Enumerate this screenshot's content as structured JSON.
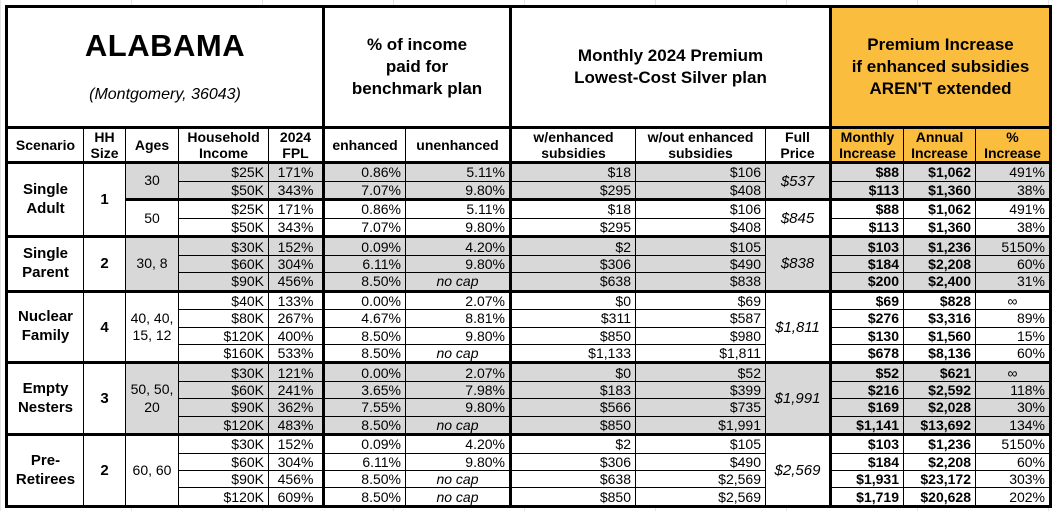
{
  "colors": {
    "accent_orange": "#FBBD3E",
    "band_gray": "#D8D8D8",
    "border": "#000000"
  },
  "title": {
    "state": "ALABAMA",
    "location": "(Montgomery, 36043)"
  },
  "group_headers": {
    "income_share": "% of income\npaid for\nbenchmark plan",
    "premium": "Monthly 2024 Premium\nLowest-Cost Silver plan",
    "increase": "Premium Increase\nif enhanced subsidies\nAREN'T extended"
  },
  "column_headers": {
    "scenario": "Scenario",
    "hh_size": "HH\nSize",
    "ages": "Ages",
    "household_income": "Household\nIncome",
    "fpl": "2024\nFPL",
    "enhanced": "enhanced",
    "unenhanced": "unenhanced",
    "w_enhanced": "w/enhanced\nsubsidies",
    "wo_enhanced": "w/out enhanced\nsubsidies",
    "full_price": "Full\nPrice",
    "monthly_increase": "Monthly\nIncrease",
    "annual_increase": "Annual\nIncrease",
    "pct_increase": "%\nIncrease"
  },
  "blocks": [
    {
      "scenario": "Single\nAdult",
      "hh_size": "1",
      "subblocks": [
        {
          "ages": "30",
          "shaded": true,
          "full_price": "$537",
          "rows": [
            {
              "income": "$25K",
              "fpl": "171%",
              "enhanced": "0.86%",
              "unenhanced": "5.11%",
              "w_enh": "$18",
              "wo_enh": "$106",
              "monthly": "$88",
              "annual": "$1,062",
              "pct": "491%"
            },
            {
              "income": "$50K",
              "fpl": "343%",
              "enhanced": "7.07%",
              "unenhanced": "9.80%",
              "w_enh": "$295",
              "wo_enh": "$408",
              "monthly": "$113",
              "annual": "$1,360",
              "pct": "38%"
            }
          ]
        },
        {
          "ages": "50",
          "shaded": false,
          "full_price": "$845",
          "rows": [
            {
              "income": "$25K",
              "fpl": "171%",
              "enhanced": "0.86%",
              "unenhanced": "5.11%",
              "w_enh": "$18",
              "wo_enh": "$106",
              "monthly": "$88",
              "annual": "$1,062",
              "pct": "491%"
            },
            {
              "income": "$50K",
              "fpl": "343%",
              "enhanced": "7.07%",
              "unenhanced": "9.80%",
              "w_enh": "$295",
              "wo_enh": "$408",
              "monthly": "$113",
              "annual": "$1,360",
              "pct": "38%"
            }
          ]
        }
      ]
    },
    {
      "scenario": "Single\nParent",
      "hh_size": "2",
      "subblocks": [
        {
          "ages": "30, 8",
          "shaded": true,
          "full_price": "$838",
          "rows": [
            {
              "income": "$30K",
              "fpl": "152%",
              "enhanced": "0.09%",
              "unenhanced": "4.20%",
              "w_enh": "$2",
              "wo_enh": "$105",
              "monthly": "$103",
              "annual": "$1,236",
              "pct": "5150%"
            },
            {
              "income": "$60K",
              "fpl": "304%",
              "enhanced": "6.11%",
              "unenhanced": "9.80%",
              "w_enh": "$306",
              "wo_enh": "$490",
              "monthly": "$184",
              "annual": "$2,208",
              "pct": "60%"
            },
            {
              "income": "$90K",
              "fpl": "456%",
              "enhanced": "8.50%",
              "unenhanced": "no cap",
              "w_enh": "$638",
              "wo_enh": "$838",
              "monthly": "$200",
              "annual": "$2,400",
              "pct": "31%"
            }
          ]
        }
      ]
    },
    {
      "scenario": "Nuclear\nFamily",
      "hh_size": "4",
      "subblocks": [
        {
          "ages": "40, 40,\n15, 12",
          "shaded": false,
          "full_price": "$1,811",
          "rows": [
            {
              "income": "$40K",
              "fpl": "133%",
              "enhanced": "0.00%",
              "unenhanced": "2.07%",
              "w_enh": "$0",
              "wo_enh": "$69",
              "monthly": "$69",
              "annual": "$828",
              "pct": "∞"
            },
            {
              "income": "$80K",
              "fpl": "267%",
              "enhanced": "4.67%",
              "unenhanced": "8.81%",
              "w_enh": "$311",
              "wo_enh": "$587",
              "monthly": "$276",
              "annual": "$3,316",
              "pct": "89%"
            },
            {
              "income": "$120K",
              "fpl": "400%",
              "enhanced": "8.50%",
              "unenhanced": "9.80%",
              "w_enh": "$850",
              "wo_enh": "$980",
              "monthly": "$130",
              "annual": "$1,560",
              "pct": "15%"
            },
            {
              "income": "$160K",
              "fpl": "533%",
              "enhanced": "8.50%",
              "unenhanced": "no cap",
              "w_enh": "$1,133",
              "wo_enh": "$1,811",
              "monthly": "$678",
              "annual": "$8,136",
              "pct": "60%"
            }
          ]
        }
      ]
    },
    {
      "scenario": "Empty\nNesters",
      "hh_size": "3",
      "subblocks": [
        {
          "ages": "50, 50,\n20",
          "shaded": true,
          "full_price": "$1,991",
          "rows": [
            {
              "income": "$30K",
              "fpl": "121%",
              "enhanced": "0.00%",
              "unenhanced": "2.07%",
              "w_enh": "$0",
              "wo_enh": "$52",
              "monthly": "$52",
              "annual": "$621",
              "pct": "∞"
            },
            {
              "income": "$60K",
              "fpl": "241%",
              "enhanced": "3.65%",
              "unenhanced": "7.98%",
              "w_enh": "$183",
              "wo_enh": "$399",
              "monthly": "$216",
              "annual": "$2,592",
              "pct": "118%"
            },
            {
              "income": "$90K",
              "fpl": "362%",
              "enhanced": "7.55%",
              "unenhanced": "9.80%",
              "w_enh": "$566",
              "wo_enh": "$735",
              "monthly": "$169",
              "annual": "$2,028",
              "pct": "30%"
            },
            {
              "income": "$120K",
              "fpl": "483%",
              "enhanced": "8.50%",
              "unenhanced": "no cap",
              "w_enh": "$850",
              "wo_enh": "$1,991",
              "monthly": "$1,141",
              "annual": "$13,692",
              "pct": "134%"
            }
          ]
        }
      ]
    },
    {
      "scenario": "Pre-\nRetirees",
      "hh_size": "2",
      "subblocks": [
        {
          "ages": "60, 60",
          "shaded": false,
          "full_price": "$2,569",
          "rows": [
            {
              "income": "$30K",
              "fpl": "152%",
              "enhanced": "0.09%",
              "unenhanced": "4.20%",
              "w_enh": "$2",
              "wo_enh": "$105",
              "monthly": "$103",
              "annual": "$1,236",
              "pct": "5150%"
            },
            {
              "income": "$60K",
              "fpl": "304%",
              "enhanced": "6.11%",
              "unenhanced": "9.80%",
              "w_enh": "$306",
              "wo_enh": "$490",
              "monthly": "$184",
              "annual": "$2,208",
              "pct": "60%"
            },
            {
              "income": "$90K",
              "fpl": "456%",
              "enhanced": "8.50%",
              "unenhanced": "no cap",
              "w_enh": "$638",
              "wo_enh": "$2,569",
              "monthly": "$1,931",
              "annual": "$23,172",
              "pct": "303%"
            },
            {
              "income": "$120K",
              "fpl": "609%",
              "enhanced": "8.50%",
              "unenhanced": "no cap",
              "w_enh": "$850",
              "wo_enh": "$2,569",
              "monthly": "$1,719",
              "annual": "$20,628",
              "pct": "202%"
            }
          ]
        }
      ]
    }
  ]
}
